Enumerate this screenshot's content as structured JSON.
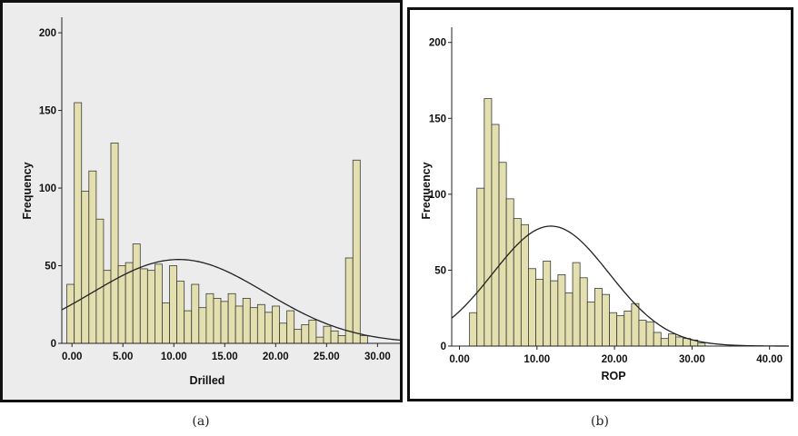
{
  "chart_data": [
    {
      "type": "bar",
      "panel_label": "(a)",
      "xlabel": "Drilled",
      "ylabel": "Frequency",
      "xlim": [
        -1,
        32.2
      ],
      "ylim": [
        0,
        210
      ],
      "xticks": [
        "0.00",
        "5.00",
        "10.00",
        "15.00",
        "20.00",
        "25.00",
        "30.00"
      ],
      "xtick_values": [
        0,
        5,
        10,
        15,
        20,
        25,
        30
      ],
      "yticks": [
        "0",
        "50",
        "100",
        "150",
        "200"
      ],
      "ytick_values": [
        0,
        50,
        100,
        150,
        200
      ],
      "bin_width": 0.72,
      "bin_start": -0.5,
      "values": [
        38,
        155,
        98,
        111,
        80,
        47,
        129,
        50,
        52,
        64,
        48,
        47,
        51,
        26,
        50,
        40,
        21,
        38,
        23,
        32,
        29,
        27,
        32,
        24,
        29,
        23,
        25,
        20,
        24,
        13,
        21,
        9,
        12,
        15,
        4,
        11,
        8,
        5,
        55,
        118,
        5
      ],
      "normal_curve": {
        "mean": 10.5,
        "sd": 8.5,
        "peak": 54
      }
    },
    {
      "type": "bar",
      "panel_label": "(b)",
      "xlabel": "ROP",
      "ylabel": "Frequency",
      "xlim": [
        -1,
        42.5
      ],
      "ylim": [
        0,
        210
      ],
      "xticks": [
        "0.00",
        "10.00",
        "20.00",
        "30.00",
        "40.00"
      ],
      "xtick_values": [
        0,
        10,
        20,
        30,
        40
      ],
      "yticks": [
        "0",
        "50",
        "100",
        "150",
        "200"
      ],
      "ytick_values": [
        0,
        50,
        100,
        150,
        200
      ],
      "bin_width": 0.95,
      "bin_start": 1.3,
      "values": [
        22,
        104,
        163,
        146,
        121,
        97,
        84,
        80,
        51,
        44,
        56,
        43,
        47,
        35,
        55,
        45,
        29,
        38,
        34,
        22,
        20,
        23,
        28,
        17,
        16,
        9,
        5,
        8,
        6,
        5,
        4,
        2
      ],
      "normal_curve": {
        "mean": 11.8,
        "sd": 7.5,
        "peak": 79
      }
    }
  ]
}
